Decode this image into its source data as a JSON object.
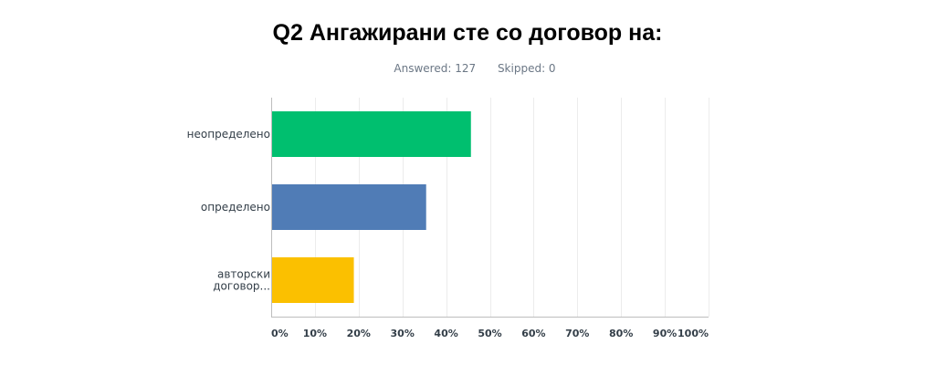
{
  "title": "Q2 Ангажирани сте со договор на:",
  "stats": {
    "answered": "Answered: 127",
    "skipped": "Skipped: 0"
  },
  "chart_data": {
    "type": "bar",
    "orientation": "horizontal",
    "categories": [
      "неопределено",
      "определено",
      "авторски договор..."
    ],
    "category_label_lines": [
      [
        "неопределено"
      ],
      [
        "определено"
      ],
      [
        "авторски",
        "договор..."
      ]
    ],
    "values": [
      45.67,
      35.43,
      18.9
    ],
    "value_unit": "%",
    "colors": [
      "#00bf6f",
      "#507cb6",
      "#fbc000"
    ],
    "xlim": [
      0,
      100
    ],
    "xticks": [
      "0%",
      "10%",
      "20%",
      "30%",
      "40%",
      "50%",
      "60%",
      "70%",
      "80%",
      "90%",
      "100%"
    ],
    "grid": true,
    "legend": "none"
  }
}
